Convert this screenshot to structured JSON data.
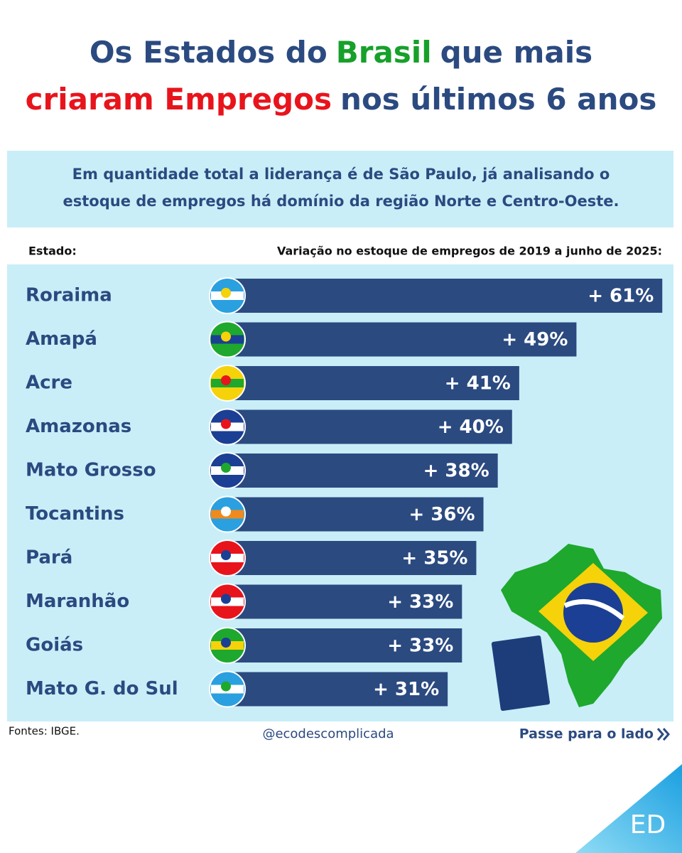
{
  "chart_data": {
    "type": "bar",
    "orientation": "horizontal",
    "title_lines": [
      [
        {
          "text": "Os Estados do",
          "color": "#2b4a80"
        },
        {
          "text": "Brasil",
          "color": "#17a02a"
        },
        {
          "text": "que mais",
          "color": "#2b4a80"
        }
      ],
      [
        {
          "text": "criaram Empregos",
          "color": "#e8141c"
        },
        {
          "text": "nos últimos 6 anos",
          "color": "#2b4a80"
        }
      ]
    ],
    "subtitle_lines": [
      "Em quantidade total a liderança é de São Paulo, já analisando o",
      "estoque de empregos há domínio da região Norte e Centro-Oeste."
    ],
    "category_header": "Estado:",
    "value_header": "Variação no estoque de empregos de 2019 a junho de 2025:",
    "categories": [
      "Roraima",
      "Amapá",
      "Acre",
      "Amazonas",
      "Mato Grosso",
      "Tocantins",
      "Pará",
      "Maranhão",
      "Goiás",
      "Mato G. do Sul"
    ],
    "values": [
      61,
      49,
      41,
      40,
      38,
      36,
      35,
      33,
      33,
      31
    ],
    "value_labels": [
      "+ 61%",
      "+ 49%",
      "+ 41%",
      "+ 40%",
      "+ 38%",
      "+ 36%",
      "+ 35%",
      "+ 33%",
      "+ 33%",
      "+ 31%"
    ],
    "color": "#2b4a80",
    "source": "Fontes: IBGE.",
    "handle": "@ecodescomplicada",
    "next": "Passe para o lado",
    "logo": "ED"
  }
}
